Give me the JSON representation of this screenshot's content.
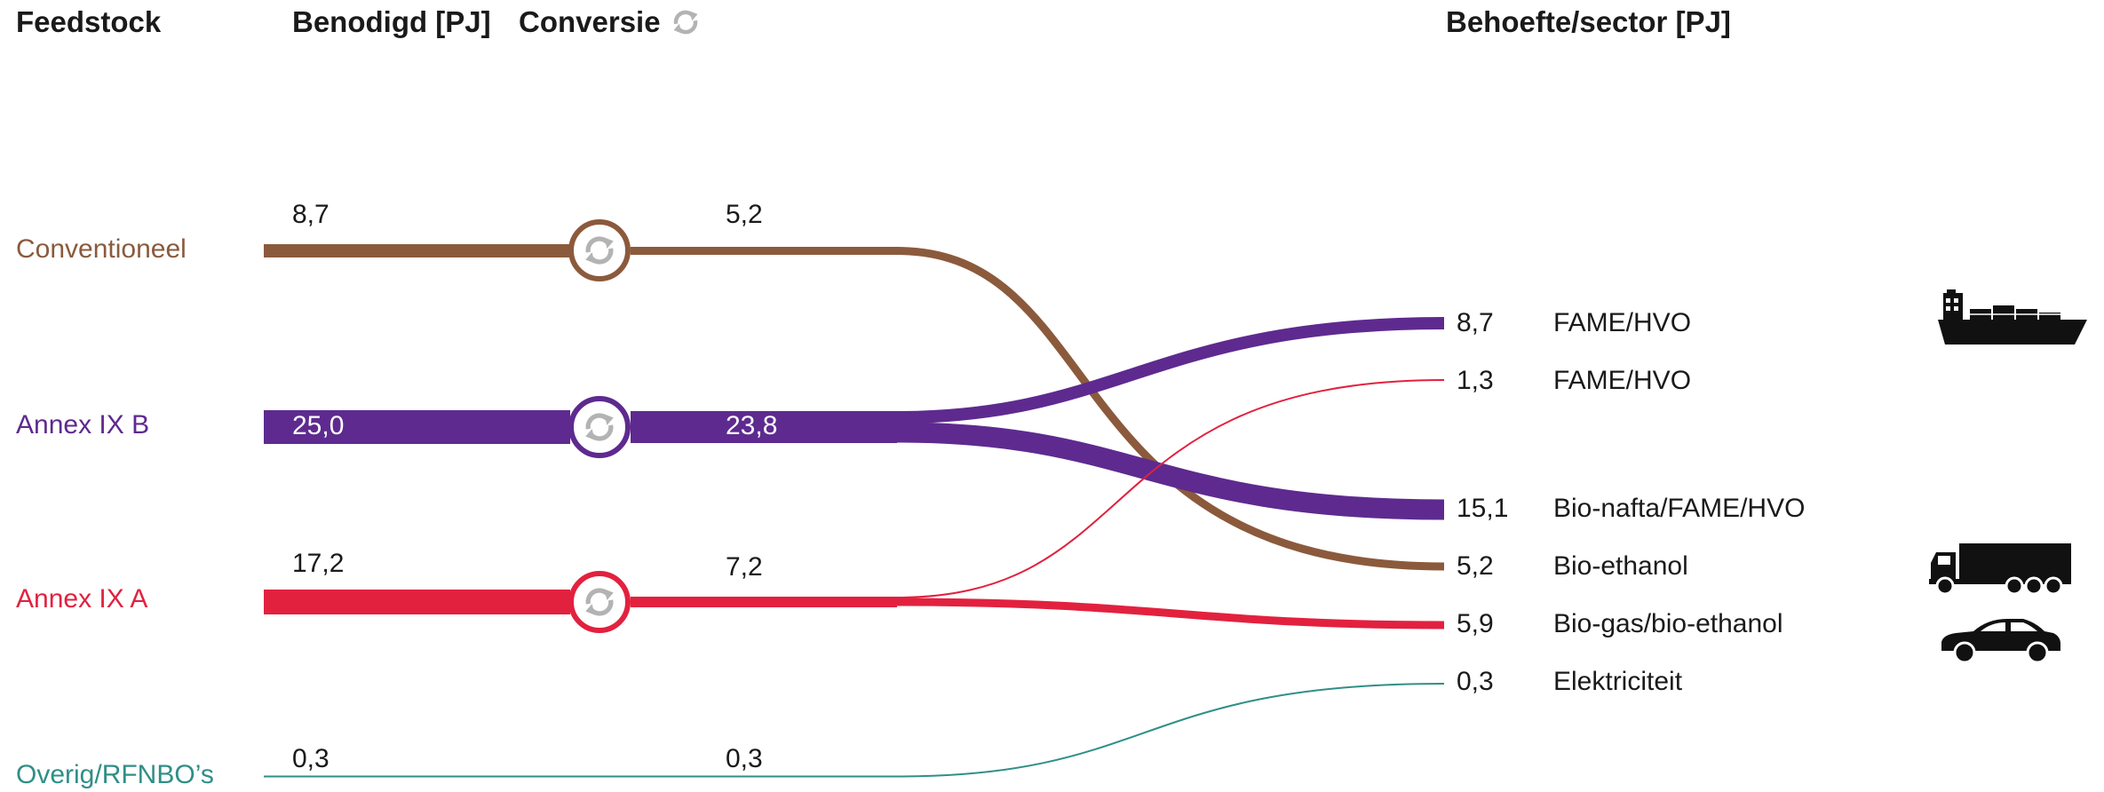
{
  "headers": {
    "feedstock": "Feedstock",
    "benodigd": "Benodigd [PJ]",
    "conversie": "Conversie",
    "behoefte": "Behoefte/sector [PJ]"
  },
  "colors": {
    "conventioneel": "#8b5a3c",
    "annex_b": "#5e2a8f",
    "annex_a": "#e2213f",
    "overig": "#2f8f86",
    "cycle_icon": "#b3b3b3",
    "vehicle_icon": "#111111"
  },
  "feedstocks": [
    {
      "key": "conventioneel",
      "label": "Conventioneel",
      "benodigd": "8,7",
      "conversie": "5,2"
    },
    {
      "key": "annex_b",
      "label": "Annex IX B",
      "benodigd": "25,0",
      "conversie": "23,8"
    },
    {
      "key": "annex_a",
      "label": "Annex IX A",
      "benodigd": "17,2",
      "conversie": "7,2"
    },
    {
      "key": "overig",
      "label": "Overig/RFNBO’s",
      "benodigd": "0,3",
      "conversie": "0,3"
    }
  ],
  "outputs": [
    {
      "value": "8,7",
      "label": "FAME/HVO",
      "source": "annex_b",
      "icon": "ship-icon"
    },
    {
      "value": "1,3",
      "label": "FAME/HVO",
      "source": "annex_a"
    },
    {
      "value": "15,1",
      "label": "Bio-nafta/FAME/HVO",
      "source": "annex_b"
    },
    {
      "value": "5,2",
      "label": "Bio-ethanol",
      "source": "conventioneel",
      "icon": "truck-icon"
    },
    {
      "value": "5,9",
      "label": "Bio-gas/bio-ethanol",
      "source": "annex_a",
      "icon": "car-icon"
    },
    {
      "value": "0,3",
      "label": "Elektriciteit",
      "source": "overig"
    }
  ]
}
